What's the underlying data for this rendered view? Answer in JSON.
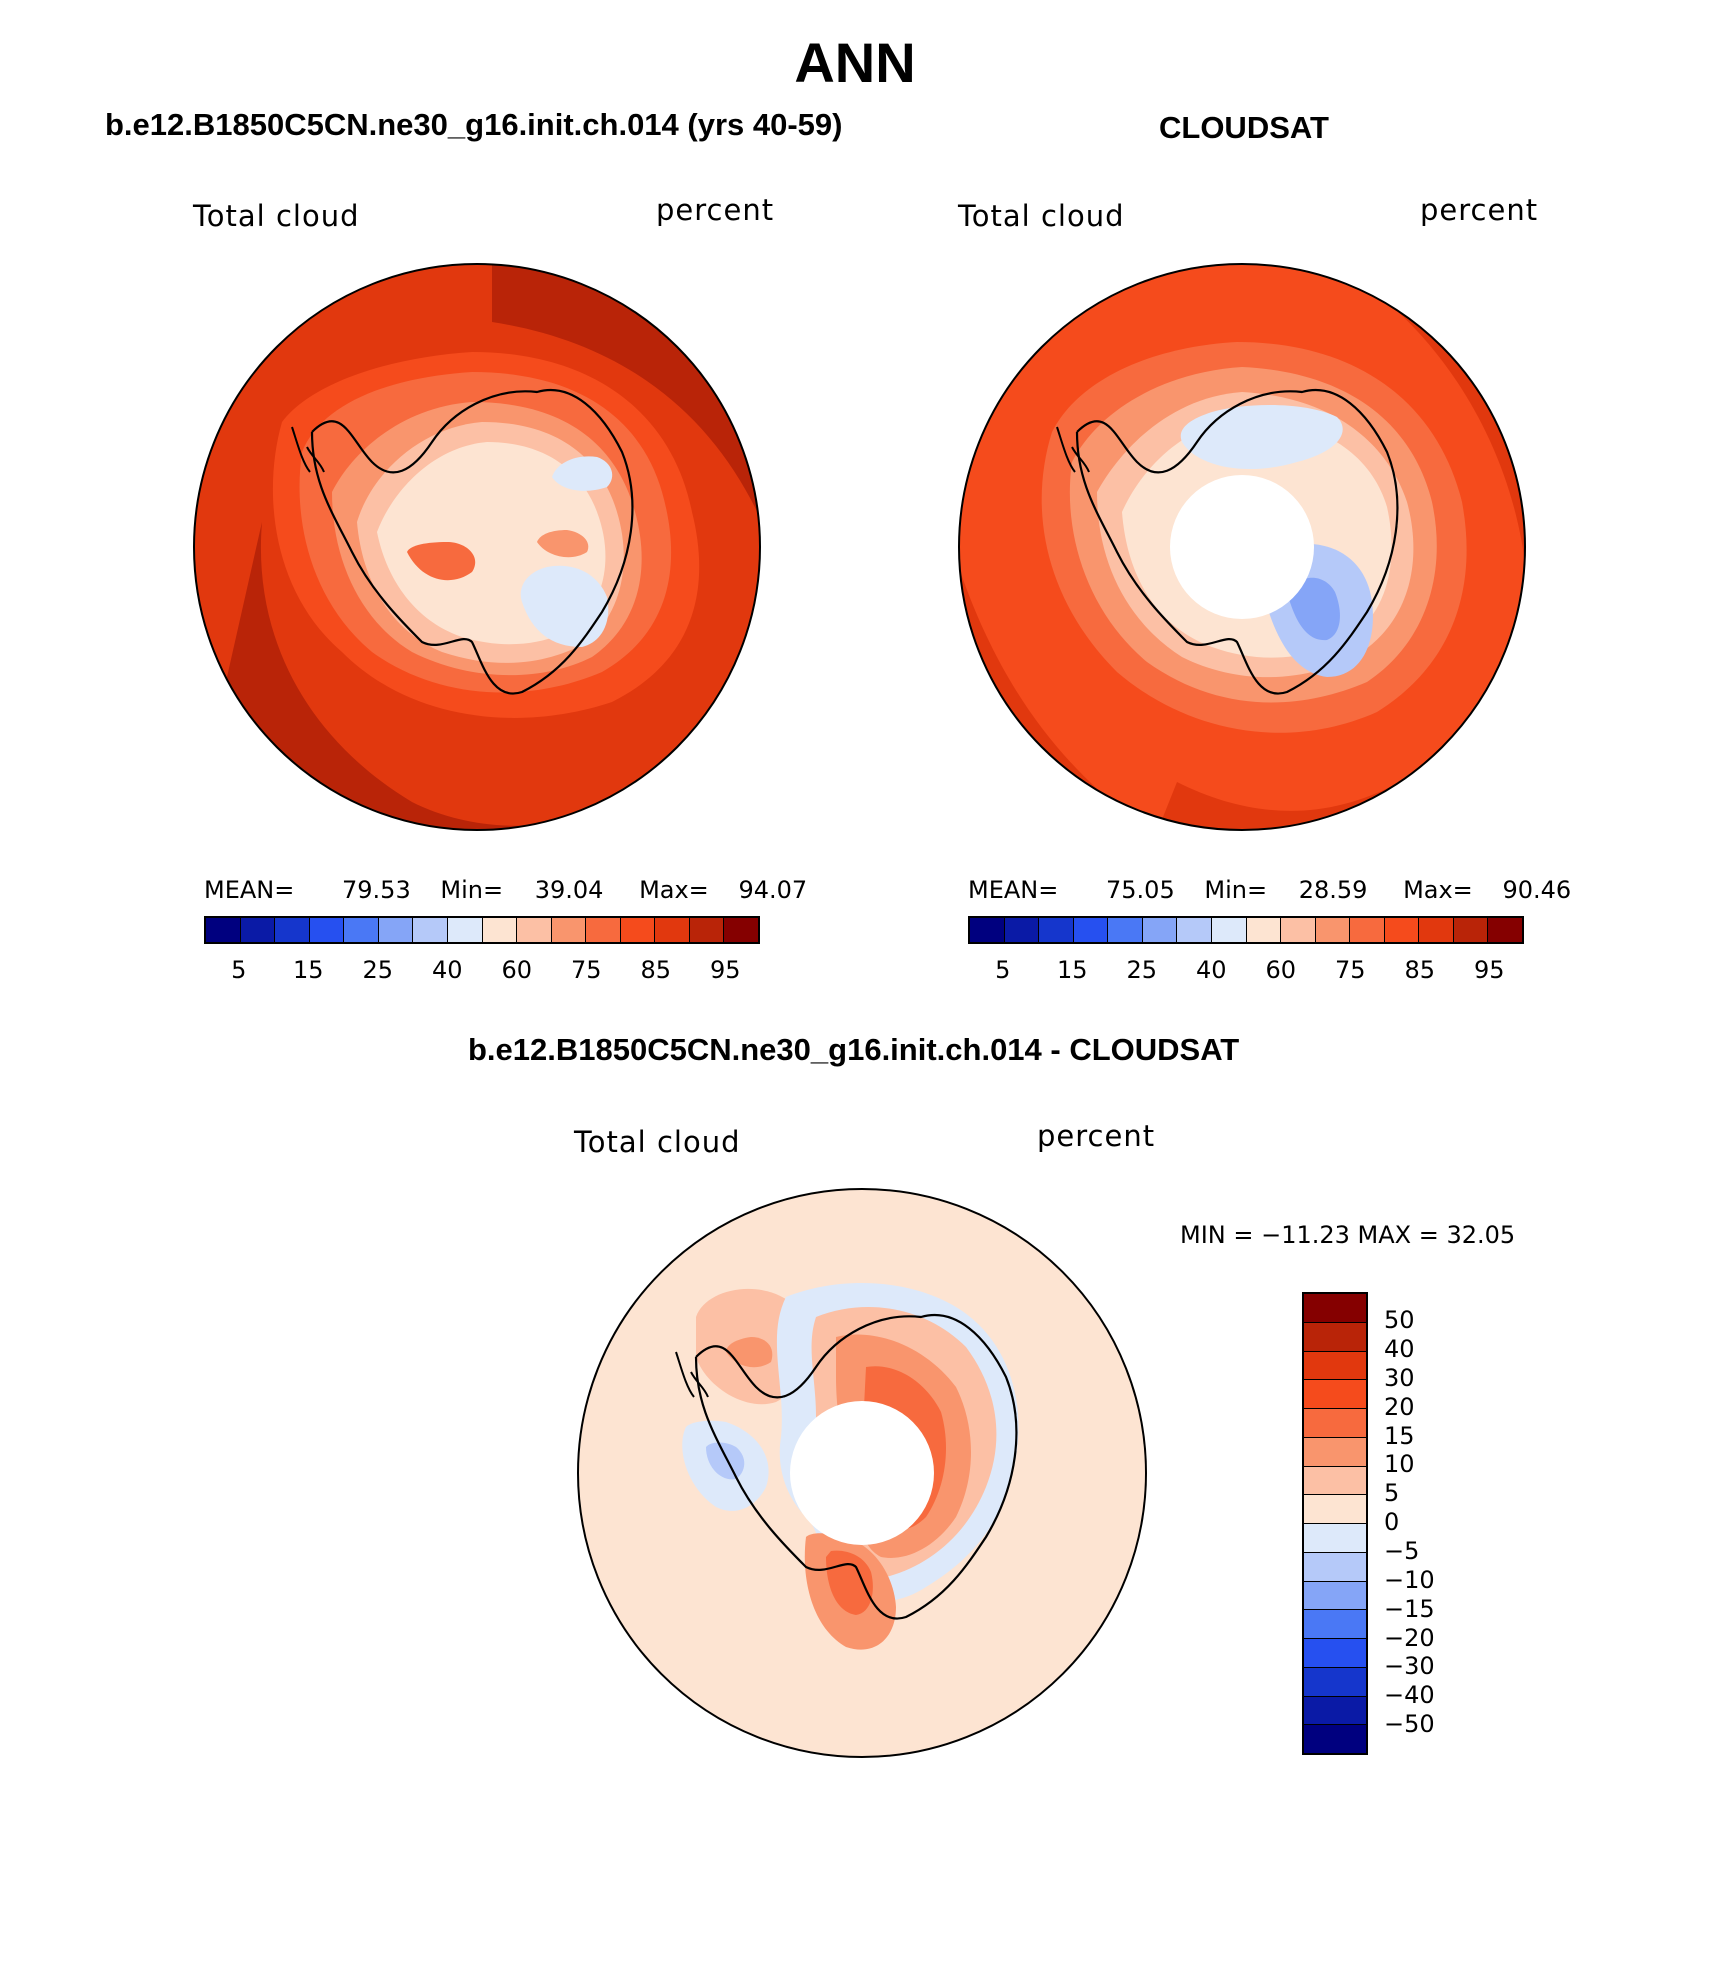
{
  "title": "ANN",
  "panels": {
    "left": {
      "title": "b.e12.B1850C5CN.ne30_g16.init.ch.014 (yrs 40-59)",
      "var_label": "Total cloud",
      "units": "percent",
      "stats": {
        "mean_label": "MEAN=",
        "mean": "79.53",
        "min_label": "Min=",
        "min": "39.04",
        "max_label": "Max=",
        "max": "94.07"
      }
    },
    "right": {
      "title": "CLOUDSAT",
      "var_label": "Total cloud",
      "units": "percent",
      "stats": {
        "mean_label": "MEAN=",
        "mean": "75.05",
        "min_label": "Min=",
        "min": "28.59",
        "max_label": "Max=",
        "max": "90.46"
      }
    },
    "diff": {
      "title": "b.e12.B1850C5CN.ne30_g16.init.ch.014 - CLOUDSAT",
      "var_label": "Total cloud",
      "units": "percent",
      "minmax": "MIN = −11.23 MAX =   32.05"
    }
  },
  "colorbar_abs": {
    "colors": [
      "#00007f",
      "#0a1aa6",
      "#1536cc",
      "#2650f0",
      "#4a78f5",
      "#85a5f7",
      "#b5c9f9",
      "#dde9fa",
      "#fde4d2",
      "#fcc0a5",
      "#f9956d",
      "#f76a3e",
      "#f54b1c",
      "#e1380e",
      "#b92408",
      "#850000"
    ],
    "labels": [
      "5",
      "15",
      "25",
      "40",
      "60",
      "75",
      "85",
      "95"
    ]
  },
  "colorbar_diff": {
    "colors": [
      "#850000",
      "#b92408",
      "#e1380e",
      "#f54b1c",
      "#f76a3e",
      "#f9956d",
      "#fcc0a5",
      "#fde4d2",
      "#dde9fa",
      "#b5c9f9",
      "#85a5f7",
      "#4a78f5",
      "#2650f0",
      "#1536cc",
      "#0a1aa6",
      "#00007f"
    ],
    "labels": [
      "50",
      "40",
      "30",
      "20",
      "15",
      "10",
      "5",
      "0",
      "−5",
      "−10",
      "−15",
      "−20",
      "−30",
      "−40",
      "−50"
    ]
  },
  "map_colors": {
    "ocean_model": "#e1380e",
    "ocean_model_dark": "#b92408",
    "ocean_obs": "#f54b1c",
    "ocean_obs_dark": "#e1380e",
    "diff_background": "#fde4d2",
    "coastline": "#000000"
  }
}
